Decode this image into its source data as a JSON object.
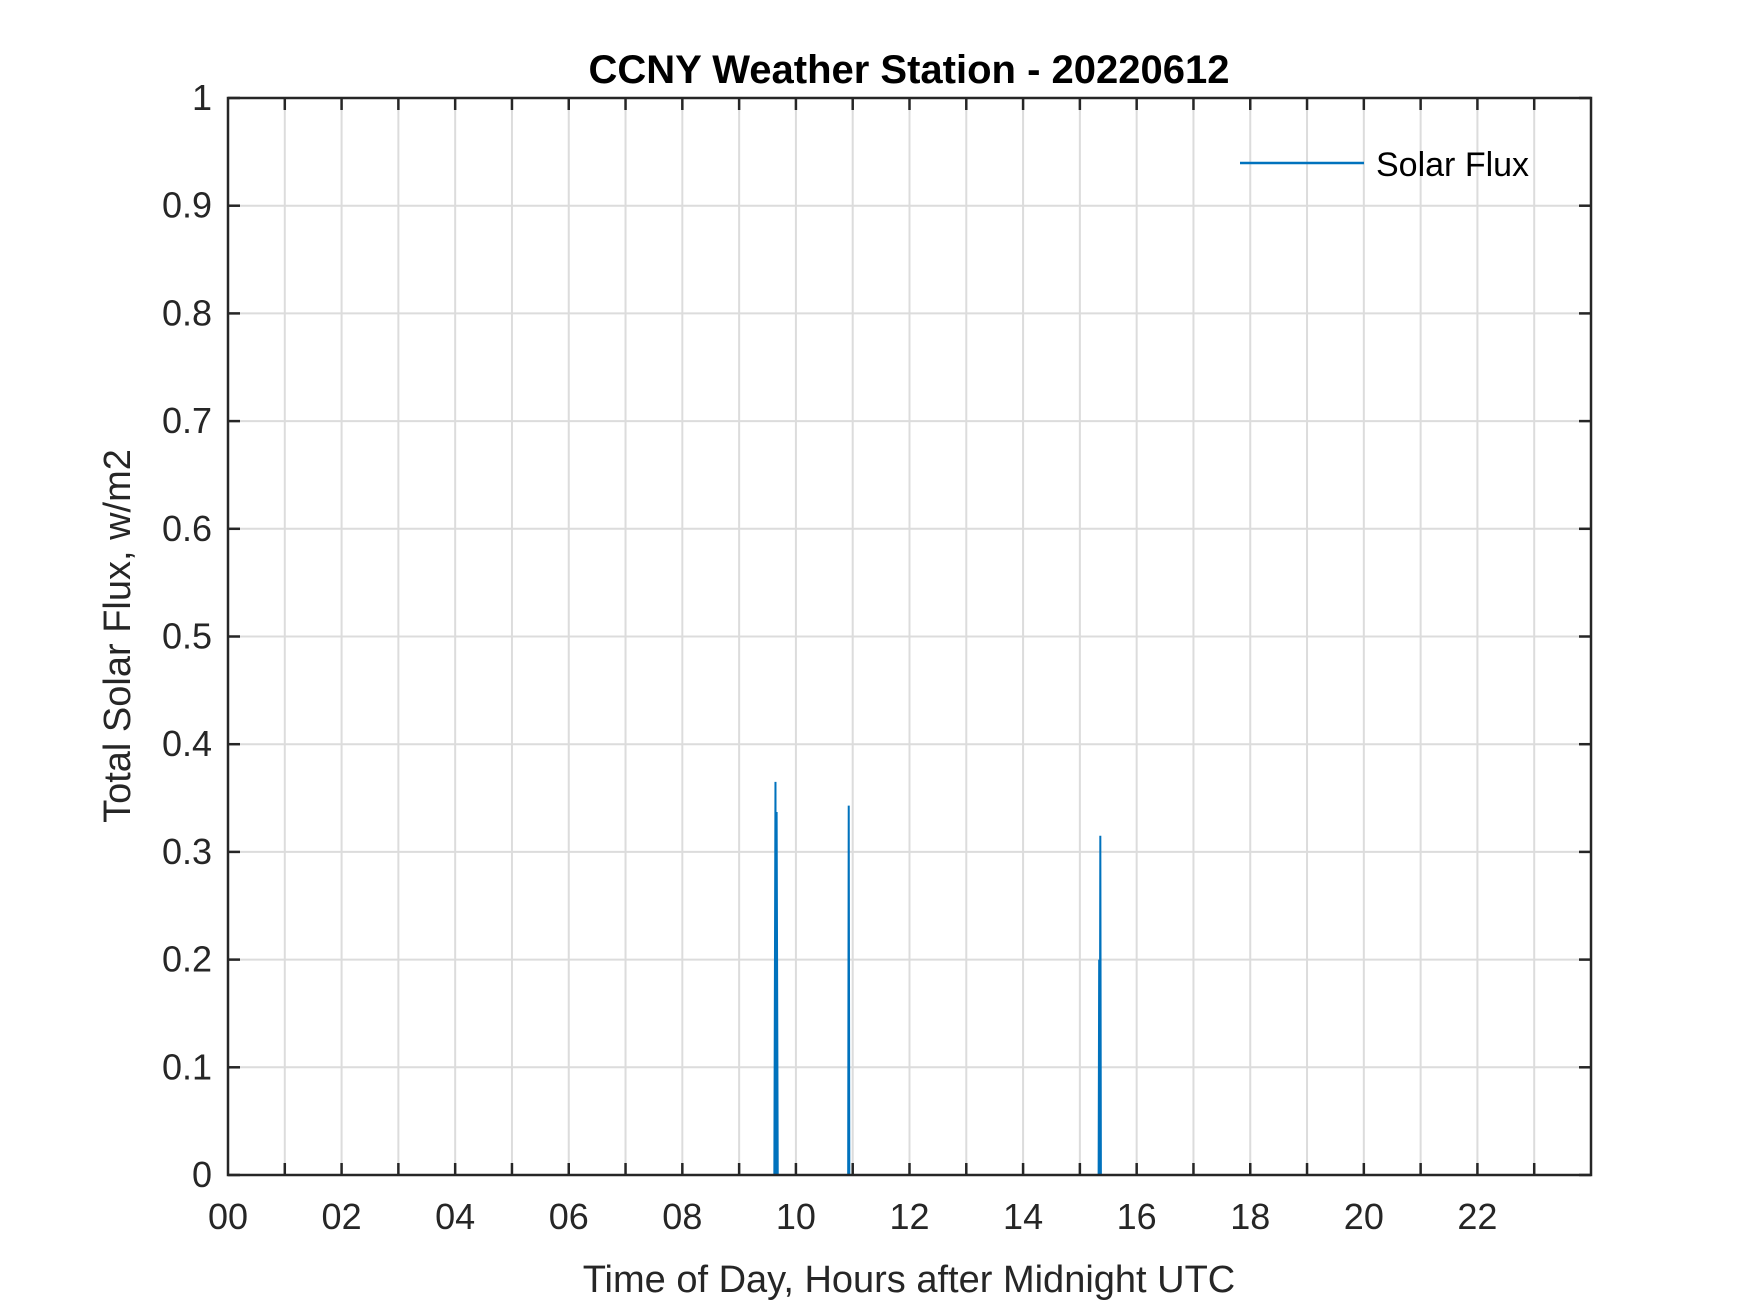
{
  "chart_data": {
    "type": "line",
    "title": "CCNY Weather Station - 20220612",
    "xlabel": "Time of Day, Hours after Midnight UTC",
    "ylabel": "Total Solar Flux, w/m2",
    "xlim": [
      0,
      24
    ],
    "ylim": [
      0,
      1
    ],
    "x_ticks": [
      0,
      2,
      4,
      6,
      8,
      10,
      12,
      14,
      16,
      18,
      20,
      22
    ],
    "x_tick_labels": [
      "00",
      "02",
      "04",
      "06",
      "08",
      "10",
      "12",
      "14",
      "16",
      "18",
      "20",
      "22"
    ],
    "x_minor_grid_step": 1,
    "y_ticks": [
      0,
      0.1,
      0.2,
      0.3,
      0.4,
      0.5,
      0.6,
      0.7,
      0.8,
      0.9,
      1
    ],
    "y_tick_labels": [
      "0",
      "0.1",
      "0.2",
      "0.3",
      "0.4",
      "0.5",
      "0.6",
      "0.7",
      "0.8",
      "0.9",
      "1"
    ],
    "grid": true,
    "legend_position": "top-right",
    "series": [
      {
        "name": "Solar Flux",
        "color": "#0072BD",
        "x": [
          9.6,
          9.62,
          9.64,
          9.65,
          9.66,
          9.68,
          9.7,
          10.9,
          10.92,
          10.93,
          10.94,
          10.96,
          15.3,
          15.33,
          15.34,
          15.35,
          15.36,
          15.37,
          15.38,
          15.4
        ],
        "y": [
          0,
          0,
          0.365,
          0,
          0.337,
          0,
          0,
          0,
          0,
          0.343,
          0,
          0,
          0,
          0,
          0.2,
          0,
          0.315,
          0,
          0,
          0
        ]
      }
    ]
  }
}
